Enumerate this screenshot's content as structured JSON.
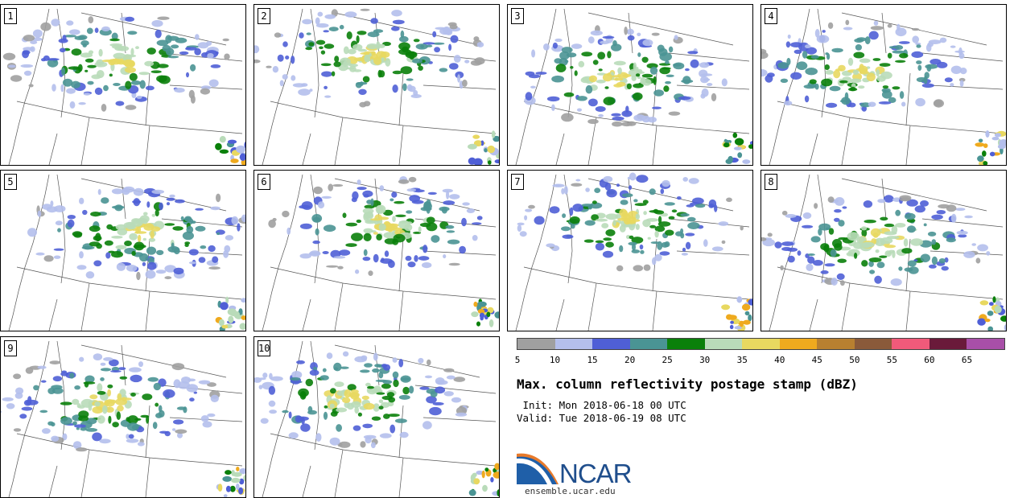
{
  "title": "Max. column reflectivity postage stamp (dBZ)",
  "init_text": " Init: Mon 2018-06-18 00 UTC",
  "valid_text": "Valid: Tue 2018-06-19 08 UTC",
  "panels": [
    "1",
    "2",
    "3",
    "4",
    "5",
    "6",
    "7",
    "8",
    "9",
    "10"
  ],
  "colorbar": {
    "colors": [
      "#a0a0a0",
      "#b4bfec",
      "#4f5fd6",
      "#4a9494",
      "#0a800a",
      "#b9dbb9",
      "#e8d860",
      "#efaa1e",
      "#b88030",
      "#8a5a3a",
      "#f05a7a",
      "#6a1a3a",
      "#a84fa8"
    ],
    "ticks": [
      "5",
      "10",
      "15",
      "20",
      "25",
      "30",
      "35",
      "40",
      "45",
      "50",
      "55",
      "60",
      "65"
    ]
  },
  "logo": {
    "name": "NCAR",
    "url": "ensemble.ucar.edu"
  }
}
